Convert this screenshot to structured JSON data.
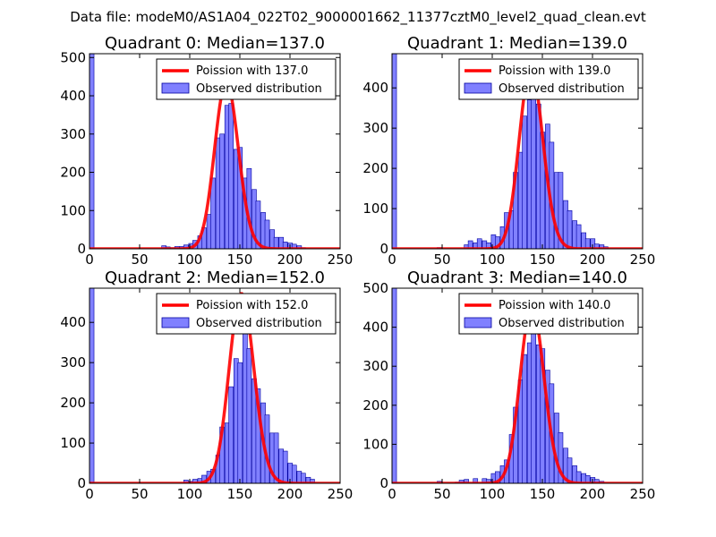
{
  "figure": {
    "suptitle": "Data file: modeM0/AS1A04_022T02_9000001662_11377cztM0_level2_quad_clean.evt"
  },
  "colors": {
    "fit_line": "#ff0000",
    "bar_fill": "#8080ff",
    "bar_edge": "#0000a0",
    "axes": "#000000"
  },
  "chart_data": [
    {
      "type": "bar",
      "title": "Quadrant 0: Median=137.0",
      "median": 137.0,
      "xlim": [
        0,
        250
      ],
      "ylim": [
        0,
        510
      ],
      "xticks": [
        "0",
        "50",
        "100",
        "150",
        "200",
        "250"
      ],
      "yticks": [
        "0",
        "100",
        "200",
        "300",
        "400",
        "500"
      ],
      "legend": {
        "fit": "Poission with 137.0",
        "observed": "Observed distribution",
        "placement": "top-right"
      },
      "bin_width": 4.5,
      "hist": [
        [
          0,
          510
        ],
        [
          72,
          8
        ],
        [
          76,
          5
        ],
        [
          81,
          3
        ],
        [
          85,
          6
        ],
        [
          90,
          6
        ],
        [
          94,
          10
        ],
        [
          99,
          14
        ],
        [
          103,
          22
        ],
        [
          108,
          34
        ],
        [
          112,
          55
        ],
        [
          117,
          90
        ],
        [
          121,
          185
        ],
        [
          126,
          290
        ],
        [
          130,
          300
        ],
        [
          135,
          375
        ],
        [
          139,
          380
        ],
        [
          144,
          260
        ],
        [
          148,
          265
        ],
        [
          153,
          185
        ],
        [
          157,
          210
        ],
        [
          162,
          155
        ],
        [
          166,
          125
        ],
        [
          171,
          95
        ],
        [
          175,
          75
        ],
        [
          180,
          50
        ],
        [
          184,
          30
        ],
        [
          189,
          30
        ],
        [
          193,
          18
        ],
        [
          198,
          15
        ],
        [
          202,
          12
        ],
        [
          207,
          8
        ],
        [
          211,
          3
        ]
      ]
    },
    {
      "type": "bar",
      "title": "Quadrant 1: Median=139.0",
      "median": 139.0,
      "xlim": [
        0,
        250
      ],
      "ylim": [
        0,
        485
      ],
      "xticks": [
        "0",
        "50",
        "100",
        "150",
        "200",
        "250"
      ],
      "yticks": [
        "0",
        "100",
        "200",
        "300",
        "400"
      ],
      "legend": {
        "fit": "Poission with 139.0",
        "observed": "Observed distribution",
        "placement": "top-right"
      },
      "bin_width": 4.5,
      "hist": [
        [
          0,
          485
        ],
        [
          45,
          3
        ],
        [
          72,
          10
        ],
        [
          76,
          20
        ],
        [
          81,
          15
        ],
        [
          85,
          25
        ],
        [
          90,
          20
        ],
        [
          94,
          15
        ],
        [
          99,
          35
        ],
        [
          103,
          30
        ],
        [
          108,
          55
        ],
        [
          112,
          90
        ],
        [
          117,
          95
        ],
        [
          121,
          190
        ],
        [
          126,
          240
        ],
        [
          130,
          330
        ],
        [
          135,
          370
        ],
        [
          139,
          390
        ],
        [
          144,
          360
        ],
        [
          148,
          290
        ],
        [
          153,
          310
        ],
        [
          157,
          265
        ],
        [
          162,
          190
        ],
        [
          166,
          190
        ],
        [
          171,
          120
        ],
        [
          175,
          95
        ],
        [
          180,
          70
        ],
        [
          184,
          60
        ],
        [
          189,
          40
        ],
        [
          193,
          25
        ],
        [
          198,
          25
        ],
        [
          202,
          12
        ],
        [
          207,
          10
        ],
        [
          211,
          5
        ]
      ]
    },
    {
      "type": "bar",
      "title": "Quadrant 2: Median=152.0",
      "median": 152.0,
      "xlim": [
        0,
        250
      ],
      "ylim": [
        0,
        485
      ],
      "xticks": [
        "0",
        "50",
        "100",
        "150",
        "200",
        "250"
      ],
      "yticks": [
        "0",
        "100",
        "200",
        "300",
        "400"
      ],
      "legend": {
        "fit": "Poission with 152.0",
        "observed": "Observed distribution",
        "placement": "top-right"
      },
      "bin_width": 4.5,
      "hist": [
        [
          0,
          485
        ],
        [
          94,
          8
        ],
        [
          99,
          5
        ],
        [
          103,
          10
        ],
        [
          108,
          12
        ],
        [
          112,
          20
        ],
        [
          117,
          30
        ],
        [
          121,
          35
        ],
        [
          126,
          70
        ],
        [
          130,
          140
        ],
        [
          135,
          150
        ],
        [
          139,
          240
        ],
        [
          144,
          310
        ],
        [
          148,
          300
        ],
        [
          153,
          410
        ],
        [
          157,
          335
        ],
        [
          162,
          260
        ],
        [
          166,
          235
        ],
        [
          171,
          200
        ],
        [
          175,
          170
        ],
        [
          180,
          125
        ],
        [
          184,
          125
        ],
        [
          189,
          85
        ],
        [
          193,
          80
        ],
        [
          198,
          50
        ],
        [
          202,
          45
        ],
        [
          207,
          30
        ],
        [
          211,
          25
        ],
        [
          216,
          15
        ],
        [
          220,
          10
        ]
      ]
    },
    {
      "type": "bar",
      "title": "Quadrant 3: Median=140.0",
      "median": 140.0,
      "xlim": [
        0,
        250
      ],
      "ylim": [
        0,
        500
      ],
      "xticks": [
        "0",
        "50",
        "100",
        "150",
        "200",
        "250"
      ],
      "yticks": [
        "0",
        "100",
        "200",
        "300",
        "400",
        "500"
      ],
      "legend": {
        "fit": "Poission with 140.0",
        "observed": "Observed distribution",
        "placement": "top-right"
      },
      "bin_width": 4.5,
      "hist": [
        [
          0,
          500
        ],
        [
          45,
          5
        ],
        [
          63,
          3
        ],
        [
          67,
          8
        ],
        [
          72,
          10
        ],
        [
          81,
          12
        ],
        [
          90,
          12
        ],
        [
          94,
          10
        ],
        [
          99,
          25
        ],
        [
          103,
          30
        ],
        [
          108,
          45
        ],
        [
          112,
          60
        ],
        [
          117,
          125
        ],
        [
          121,
          195
        ],
        [
          126,
          265
        ],
        [
          130,
          330
        ],
        [
          135,
          360
        ],
        [
          139,
          395
        ],
        [
          144,
          355
        ],
        [
          148,
          345
        ],
        [
          153,
          290
        ],
        [
          157,
          255
        ],
        [
          162,
          180
        ],
        [
          166,
          130
        ],
        [
          171,
          90
        ],
        [
          175,
          65
        ],
        [
          180,
          45
        ],
        [
          184,
          30
        ],
        [
          189,
          25
        ],
        [
          193,
          20
        ],
        [
          198,
          15
        ],
        [
          202,
          10
        ],
        [
          207,
          5
        ]
      ]
    }
  ]
}
